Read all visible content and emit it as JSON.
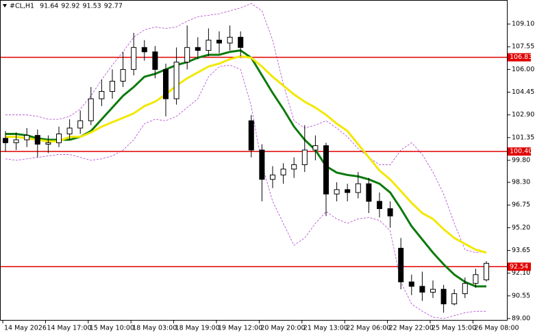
{
  "chart_data": {
    "type": "candlestick",
    "title": "#CL,H1",
    "categories": [
      "14 May 2026",
      null,
      null,
      null,
      "14 May 17:00",
      null,
      null,
      null,
      "15 May 10:00",
      null,
      null,
      null,
      "18 May 03:00",
      null,
      null,
      null,
      "18 May 19:00",
      null,
      null,
      null,
      "19 May 12:00",
      null,
      null,
      null,
      "20 May 20:00",
      null,
      null,
      null,
      "21 May 13:00",
      null,
      null,
      null,
      "22 May 06:00",
      null,
      null,
      null,
      "22 May 22:00",
      null,
      null,
      null,
      "25 May 15:00",
      null,
      null,
      null,
      "26 May 08:00",
      null
    ],
    "open": [
      101.3,
      101.0,
      101.2,
      101.5,
      100.9,
      101.0,
      101.6,
      102.0,
      102.5,
      104.0,
      104.5,
      105.2,
      106.0,
      107.5,
      107.2,
      106.0,
      104.0,
      106.5,
      107.5,
      107.3,
      108.0,
      107.8,
      108.2,
      102.5,
      100.5,
      98.5,
      98.8,
      99.2,
      99.5,
      100.5,
      100.8,
      97.5,
      97.8,
      97.6,
      98.2,
      97.0,
      96.5,
      93.8,
      91.5,
      91.2,
      90.8,
      91.0,
      90.0,
      90.7,
      91.4,
      91.64
    ],
    "high": [
      101.8,
      101.7,
      102.0,
      101.9,
      101.5,
      102.1,
      102.6,
      103.2,
      104.8,
      105.3,
      106.0,
      107.2,
      108.5,
      108.0,
      107.6,
      106.4,
      107.5,
      109.0,
      108.2,
      108.8,
      108.6,
      109.0,
      108.6,
      102.9,
      100.9,
      99.4,
      99.6,
      100.0,
      102.2,
      101.5,
      101.0,
      98.3,
      98.2,
      99.0,
      98.6,
      97.6,
      97.0,
      94.5,
      92.0,
      92.2,
      91.6,
      91.3,
      91.0,
      91.8,
      92.4,
      92.92
    ],
    "low": [
      100.4,
      100.5,
      100.7,
      100.0,
      100.3,
      100.7,
      101.2,
      101.6,
      102.2,
      103.5,
      104.0,
      104.8,
      105.6,
      106.6,
      105.4,
      102.8,
      103.6,
      106.0,
      106.7,
      106.9,
      107.1,
      107.3,
      106.9,
      100.0,
      97.0,
      97.9,
      98.2,
      98.6,
      99.0,
      99.8,
      96.0,
      97.0,
      97.0,
      97.2,
      96.2,
      95.9,
      95.2,
      91.0,
      90.6,
      90.2,
      90.4,
      89.4,
      89.9,
      90.4,
      91.1,
      91.53
    ],
    "close": [
      101.0,
      101.2,
      101.5,
      100.9,
      101.0,
      101.6,
      102.0,
      102.5,
      104.0,
      104.5,
      105.2,
      106.0,
      107.5,
      107.2,
      106.0,
      104.0,
      106.5,
      107.5,
      107.3,
      108.0,
      107.8,
      108.2,
      107.5,
      100.5,
      98.5,
      98.8,
      99.2,
      99.5,
      100.5,
      100.8,
      97.5,
      97.8,
      97.6,
      98.2,
      97.0,
      96.5,
      96.0,
      91.5,
      91.2,
      90.8,
      91.0,
      90.0,
      90.7,
      91.4,
      92.0,
      92.77
    ],
    "moving_averages": [
      {
        "color": "#0b7a0b",
        "values": [
          101.6,
          101.6,
          101.5,
          101.3,
          101.2,
          101.2,
          101.2,
          101.4,
          101.8,
          102.6,
          103.4,
          104.2,
          104.8,
          105.5,
          105.7,
          106.0,
          106.3,
          106.5,
          106.8,
          107.0,
          107.0,
          107.2,
          107.3,
          106.8,
          105.6,
          104.4,
          103.3,
          102.1,
          101.2,
          100.5,
          99.4,
          98.96,
          98.8,
          98.7,
          98.5,
          98.2,
          97.6,
          96.5,
          95.3,
          94.4,
          93.5,
          92.7,
          92.0,
          91.5,
          91.2,
          91.2
        ]
      },
      {
        "color": "#f2e800",
        "values": [
          101.4,
          101.4,
          101.3,
          101.2,
          101.1,
          101.1,
          101.4,
          101.4,
          101.7,
          102.1,
          102.4,
          102.7,
          103.0,
          103.5,
          103.8,
          104.3,
          104.9,
          105.4,
          105.8,
          106.2,
          106.4,
          106.7,
          106.9,
          106.8,
          106.2,
          105.5,
          104.9,
          104.3,
          103.8,
          103.4,
          102.9,
          102.3,
          101.8,
          100.9,
          100.0,
          99.1,
          98.5,
          97.7,
          96.9,
          96.2,
          95.8,
          95.1,
          94.5,
          94.1,
          93.7,
          93.5
        ]
      }
    ],
    "bands": {
      "color": "#b040d0",
      "upper": [
        102.9,
        102.9,
        102.9,
        102.8,
        102.6,
        102.6,
        102.8,
        103.3,
        104.2,
        105.3,
        106.3,
        107.2,
        108.2,
        108.7,
        108.9,
        108.8,
        108.9,
        109.3,
        109.6,
        109.7,
        109.8,
        110.0,
        110.2,
        110.5,
        110.0,
        108.0,
        105.0,
        102.5,
        102.0,
        102.2,
        102.5,
        102.0,
        101.4,
        100.6,
        100.0,
        99.5,
        99.5,
        100.5,
        101.0,
        100.2,
        99.0,
        97.5,
        95.5,
        93.7,
        93.5,
        93.6
      ],
      "lower": [
        99.9,
        99.8,
        99.9,
        100.0,
        100.1,
        100.2,
        100.2,
        100.0,
        99.8,
        99.9,
        100.1,
        100.5,
        101.2,
        102.3,
        102.6,
        102.5,
        102.8,
        103.4,
        104.0,
        105.5,
        106.2,
        106.3,
        106.0,
        103.5,
        99.5,
        97.0,
        95.5,
        94.0,
        94.5,
        95.5,
        96.3,
        95.8,
        95.5,
        95.8,
        95.9,
        95.7,
        95.0,
        91.5,
        90.0,
        89.5,
        89.1,
        89.0,
        89.2,
        89.4,
        89.5,
        89.5
      ]
    },
    "levels": {
      "color": "#e00000",
      "items": [
        {
          "value": 106.83,
          "label": "106.83"
        },
        {
          "value": 100.4,
          "label": "100.40"
        },
        {
          "value": 92.54,
          "label": "92.54"
        }
      ]
    },
    "ylim": [
      88.86,
      110.74
    ],
    "yticks": [
      {
        "value": 109.1,
        "label": "109.10"
      },
      {
        "value": 107.55,
        "label": "107.55"
      },
      {
        "value": 106.0,
        "label": "106.00"
      },
      {
        "value": 104.45,
        "label": "104.45"
      },
      {
        "value": 102.9,
        "label": "102.90"
      },
      {
        "value": 101.35,
        "label": "101.35"
      },
      {
        "value": 99.8,
        "label": "99.80"
      },
      {
        "value": 98.3,
        "label": "98.30"
      },
      {
        "value": 96.75,
        "label": "96.75"
      },
      {
        "value": 95.2,
        "label": "95.20"
      },
      {
        "value": 93.65,
        "label": "93.65"
      },
      {
        "value": 92.1,
        "label": "92.10"
      },
      {
        "value": 90.55,
        "label": "90.55"
      },
      {
        "value": 89.0,
        "label": "89.00"
      }
    ]
  }
}
